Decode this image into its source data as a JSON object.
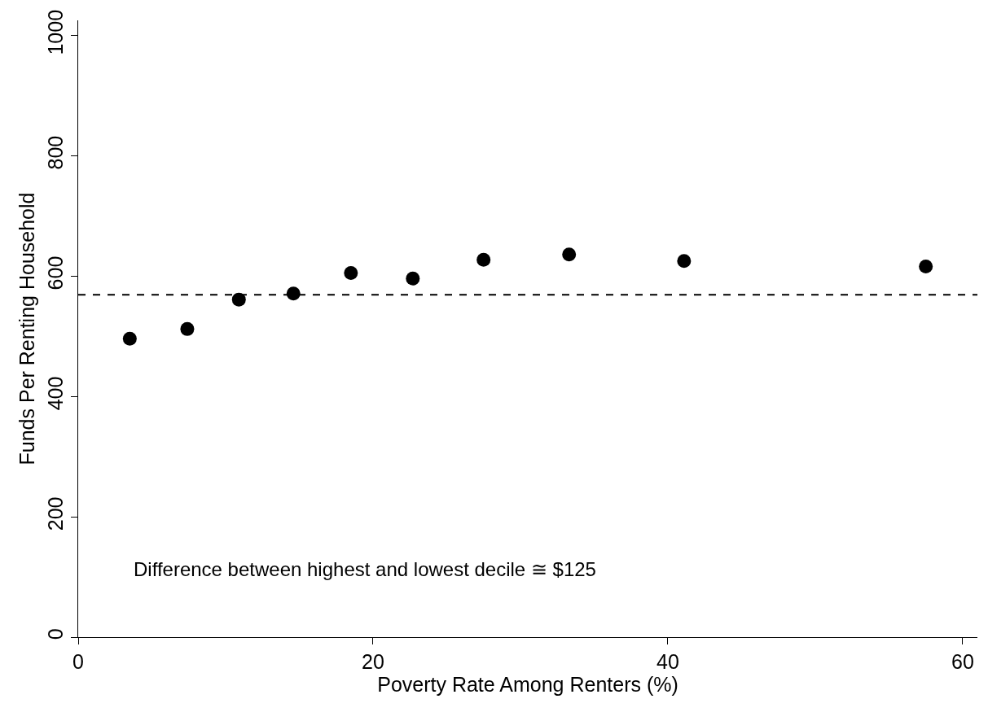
{
  "chart_data": {
    "type": "scatter",
    "xlabel": "Poverty Rate Among Renters (%)",
    "ylabel": "Funds Per Renting Household",
    "x": [
      3.5,
      7.4,
      10.9,
      14.6,
      18.5,
      22.7,
      27.5,
      33.3,
      41.1,
      57.5
    ],
    "series": [
      {
        "color": "#000000",
        "values": [
          496,
          512,
          561,
          571,
          605,
          596,
          627,
          636,
          625,
          616
        ]
      }
    ],
    "xlim": [
      0,
      61
    ],
    "ylim": [
      0,
      1025
    ],
    "xticks": [
      0,
      20,
      40,
      60
    ],
    "yticks": [
      0,
      200,
      400,
      600,
      800,
      1000
    ],
    "ref_lines": [
      {
        "axis": "y",
        "value": 569,
        "color": "#000000",
        "line_style": "dashed"
      }
    ],
    "annotations": [
      "Difference between highest and lowest decile ≅ $125"
    ],
    "marker": "circle"
  }
}
